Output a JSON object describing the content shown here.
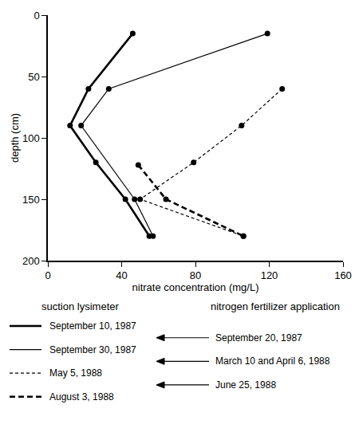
{
  "chart_data": {
    "type": "line",
    "x_label": "nitrate concentration (mg/L)",
    "y_label": "depth (cm)",
    "xlim": [
      0,
      160
    ],
    "xticks": [
      0,
      40,
      80,
      120,
      160
    ],
    "ylim": [
      200,
      0
    ],
    "yticks": [
      0,
      50,
      100,
      150,
      200
    ],
    "grid": false,
    "legend_title": "suction lysimeter",
    "series": [
      {
        "name": "September 10, 1987",
        "color": "#000000",
        "line_style": "thick",
        "marker": "circle",
        "x": [
          46,
          22,
          12,
          26,
          42,
          55
        ],
        "values": [
          15,
          60,
          90,
          120,
          150,
          180
        ]
      },
      {
        "name": "September 30, 1987",
        "color": "#000000",
        "line_style": "thin",
        "marker": "circle",
        "x": [
          119,
          33,
          18,
          47,
          57
        ],
        "values": [
          15,
          60,
          90,
          150,
          180
        ]
      },
      {
        "name": "May 5, 1988",
        "color": "#000000",
        "line_style": "thin_dashed",
        "marker": "circle",
        "x": [
          127,
          105,
          79,
          50,
          106
        ],
        "values": [
          60,
          90,
          120,
          150,
          180
        ]
      },
      {
        "name": "August 3, 1988",
        "color": "#000000",
        "line_style": "thick_dashed",
        "marker": "circle",
        "x": [
          49,
          64,
          106
        ],
        "values": [
          122,
          150,
          180
        ]
      }
    ],
    "fertilizer_title": "nitrogen fertilizer application",
    "fertilizer_dates": [
      "September 20, 1987",
      "March 10 and April 6, 1988",
      "June 25, 1988"
    ]
  }
}
